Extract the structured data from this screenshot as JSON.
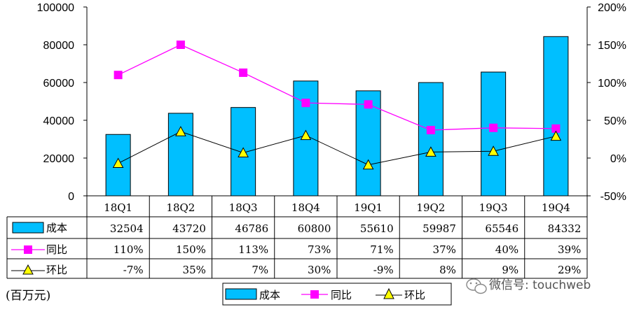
{
  "chart_data": {
    "type": "bar",
    "categories": [
      "18Q1",
      "18Q2",
      "18Q3",
      "18Q4",
      "19Q1",
      "19Q2",
      "19Q3",
      "19Q4"
    ],
    "series": [
      {
        "name": "成本",
        "kind": "bar",
        "axis": "left",
        "values": [
          32504,
          43720,
          46786,
          60800,
          55610,
          59987,
          65546,
          84332
        ],
        "labels": [
          "32504",
          "43720",
          "46786",
          "60800",
          "55610",
          "59987",
          "65546",
          "84332"
        ],
        "color": "#00BFFF"
      },
      {
        "name": "同比",
        "kind": "line",
        "axis": "right",
        "marker": "square",
        "values": [
          110,
          150,
          113,
          73,
          71,
          37,
          40,
          39
        ],
        "labels": [
          "110%",
          "150%",
          "113%",
          "73%",
          "71%",
          "37%",
          "40%",
          "39%"
        ],
        "color": "#FF00FF"
      },
      {
        "name": "环比",
        "kind": "line",
        "axis": "right",
        "marker": "triangle",
        "values": [
          -7,
          35,
          7,
          30,
          -9,
          8,
          9,
          29
        ],
        "labels": [
          "-7%",
          "35%",
          "7%",
          "30%",
          "-9%",
          "8%",
          "9%",
          "29%"
        ],
        "color": "#000000",
        "marker_color": "#FFFF00"
      }
    ],
    "y_left": {
      "min": 0,
      "max": 100000,
      "ticks": [
        0,
        20000,
        40000,
        60000,
        80000,
        100000
      ],
      "tick_labels": [
        "0",
        "20000",
        "40000",
        "60000",
        "80000",
        "100000"
      ]
    },
    "y_right": {
      "min": -50,
      "max": 200,
      "ticks": [
        -50,
        0,
        50,
        100,
        150,
        200
      ],
      "tick_labels": [
        "-50%",
        "0%",
        "50%",
        "100%",
        "150%",
        "200%"
      ]
    },
    "unit_label": "(百万元)",
    "legend": [
      "成本",
      "同比",
      "环比"
    ],
    "legend_placement": "bottom",
    "grid": false
  },
  "watermark": "微信号: touchweb"
}
